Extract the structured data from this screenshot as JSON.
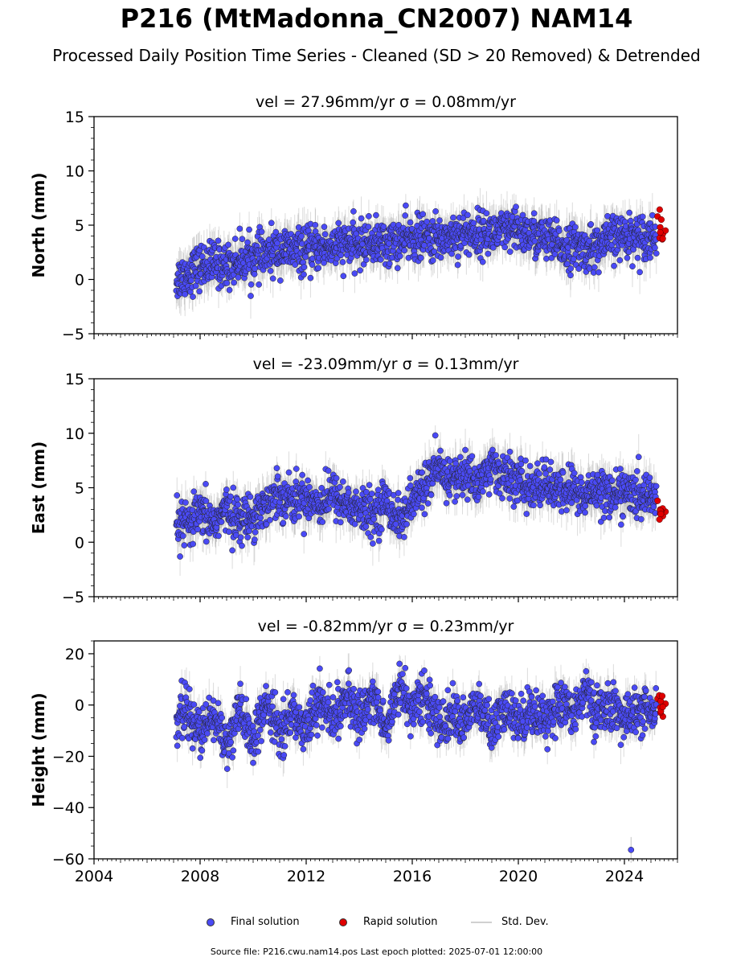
{
  "title": "P216 (MtMadonna_CN2007) NAM14",
  "subtitle": "Processed Daily Position Time Series - Cleaned (SD > 20 Removed) & Detrended",
  "footer": "Source file: P216.cwu.nam14.pos  Last epoch plotted: 2025-07-01 12:00:00",
  "colors": {
    "final": "#4a4af5",
    "rapid": "#e00000",
    "stddev": "#c8c8c8"
  },
  "legend": {
    "final": "Final solution",
    "rapid": "Rapid solution",
    "stddev": "Std. Dev."
  },
  "chart_data": [
    {
      "type": "scatter",
      "title": "vel = 27.96mm/yr   σ = 0.08mm/yr",
      "ylabel": "North (mm)",
      "xlim": [
        2004,
        2026
      ],
      "ylim": [
        -5,
        15
      ],
      "xticks": [
        "2004",
        "2008",
        "2012",
        "2016",
        "2020",
        "2024"
      ],
      "yticks": [
        "−5",
        "0",
        "5",
        "10",
        "15"
      ],
      "series": [
        {
          "role": "final",
          "x": [
            2007.1,
            2007.5,
            2008.0,
            2008.5,
            2009.0,
            2009.5,
            2010.0,
            2010.5,
            2011.0,
            2011.5,
            2012.0,
            2012.5,
            2013.0,
            2013.5,
            2014.0,
            2014.5,
            2015.0,
            2015.5,
            2016.0,
            2016.5,
            2017.0,
            2017.5,
            2018.0,
            2018.5,
            2019.0,
            2019.5,
            2020.0,
            2020.5,
            2021.0,
            2021.5,
            2022.0,
            2022.5,
            2023.0,
            2023.5,
            2024.0,
            2024.5,
            2025.0,
            2025.4
          ],
          "y": [
            0.0,
            0.5,
            1.2,
            1.5,
            1.2,
            1.8,
            2.0,
            2.2,
            2.8,
            2.6,
            2.6,
            2.9,
            3.0,
            3.2,
            3.2,
            3.5,
            3.2,
            3.5,
            3.8,
            3.8,
            3.7,
            4.1,
            4.3,
            4.2,
            4.3,
            4.3,
            4.5,
            4.0,
            3.8,
            3.1,
            3.0,
            2.8,
            3.0,
            3.8,
            4.1,
            4.0,
            4.0,
            4.1
          ]
        },
        {
          "role": "rapid",
          "x": [
            2025.25,
            2025.35,
            2025.45,
            2025.55
          ],
          "y": [
            5.8,
            4.8,
            4.2,
            4.5
          ]
        }
      ]
    },
    {
      "type": "scatter",
      "title": "vel = -23.09mm/yr   σ = 0.13mm/yr",
      "ylabel": "East (mm)",
      "xlim": [
        2004,
        2026
      ],
      "ylim": [
        -5,
        15
      ],
      "xticks": [
        "2004",
        "2008",
        "2012",
        "2016",
        "2020",
        "2024"
      ],
      "yticks": [
        "−5",
        "0",
        "5",
        "10",
        "15"
      ],
      "series": [
        {
          "role": "final",
          "x": [
            2007.1,
            2007.5,
            2008.0,
            2008.5,
            2009.0,
            2009.5,
            2010.0,
            2010.5,
            2011.0,
            2011.5,
            2012.0,
            2012.5,
            2013.0,
            2013.5,
            2014.0,
            2014.5,
            2015.0,
            2015.5,
            2016.0,
            2016.5,
            2017.0,
            2017.5,
            2018.0,
            2018.5,
            2019.0,
            2019.5,
            2020.0,
            2020.5,
            2021.0,
            2021.5,
            2022.0,
            2022.5,
            2023.0,
            2023.5,
            2024.0,
            2024.5,
            2025.0,
            2025.4
          ],
          "y": [
            1.8,
            1.5,
            2.5,
            1.8,
            3.0,
            2.0,
            2.5,
            3.5,
            4.5,
            3.8,
            4.2,
            3.5,
            4.5,
            3.5,
            3.0,
            2.5,
            3.8,
            2.0,
            3.5,
            5.5,
            6.5,
            5.8,
            6.2,
            5.5,
            7.0,
            6.0,
            5.5,
            4.8,
            5.5,
            4.5,
            5.0,
            4.0,
            5.2,
            4.2,
            4.8,
            4.0,
            4.5,
            3.8
          ]
        },
        {
          "role": "rapid",
          "x": [
            2025.25,
            2025.35,
            2025.45,
            2025.55
          ],
          "y": [
            3.8,
            3.0,
            2.4,
            2.8
          ]
        }
      ]
    },
    {
      "type": "scatter",
      "title": "vel = -0.82mm/yr   σ = 0.23mm/yr",
      "ylabel": "Height (mm)",
      "xlim": [
        2004,
        2026
      ],
      "ylim": [
        -60,
        25
      ],
      "xticks": [
        "2004",
        "2008",
        "2012",
        "2016",
        "2020",
        "2024"
      ],
      "yticks": [
        "−60",
        "−40",
        "−20",
        "0",
        "20"
      ],
      "series": [
        {
          "role": "final",
          "x": [
            2007.1,
            2007.5,
            2008.0,
            2008.5,
            2009.0,
            2009.5,
            2010.0,
            2010.5,
            2011.0,
            2011.5,
            2012.0,
            2012.5,
            2013.0,
            2013.5,
            2014.0,
            2014.5,
            2015.0,
            2015.5,
            2016.0,
            2016.5,
            2017.0,
            2017.5,
            2018.0,
            2018.5,
            2019.0,
            2019.5,
            2020.0,
            2020.5,
            2021.0,
            2021.5,
            2022.0,
            2022.5,
            2023.0,
            2023.5,
            2024.0,
            2024.5,
            2025.0,
            2025.4
          ],
          "y": [
            -6,
            -2,
            -12,
            -4,
            -15,
            -3,
            -14,
            0,
            -10,
            -4,
            -8,
            2,
            -6,
            3,
            -5,
            4,
            -10,
            8,
            -2,
            4,
            -8,
            -4,
            -6,
            0,
            -10,
            -2,
            -6,
            -2,
            -5,
            0,
            -3,
            5,
            -4,
            0,
            -6,
            -2,
            -4,
            -2
          ]
        },
        {
          "role": "final-outlier",
          "x": [
            2024.25
          ],
          "y": [
            -56.5
          ]
        },
        {
          "role": "rapid",
          "x": [
            2025.25,
            2025.35,
            2025.45,
            2025.55
          ],
          "y": [
            2.5,
            -1.0,
            -4.5,
            0.5
          ]
        }
      ]
    }
  ]
}
